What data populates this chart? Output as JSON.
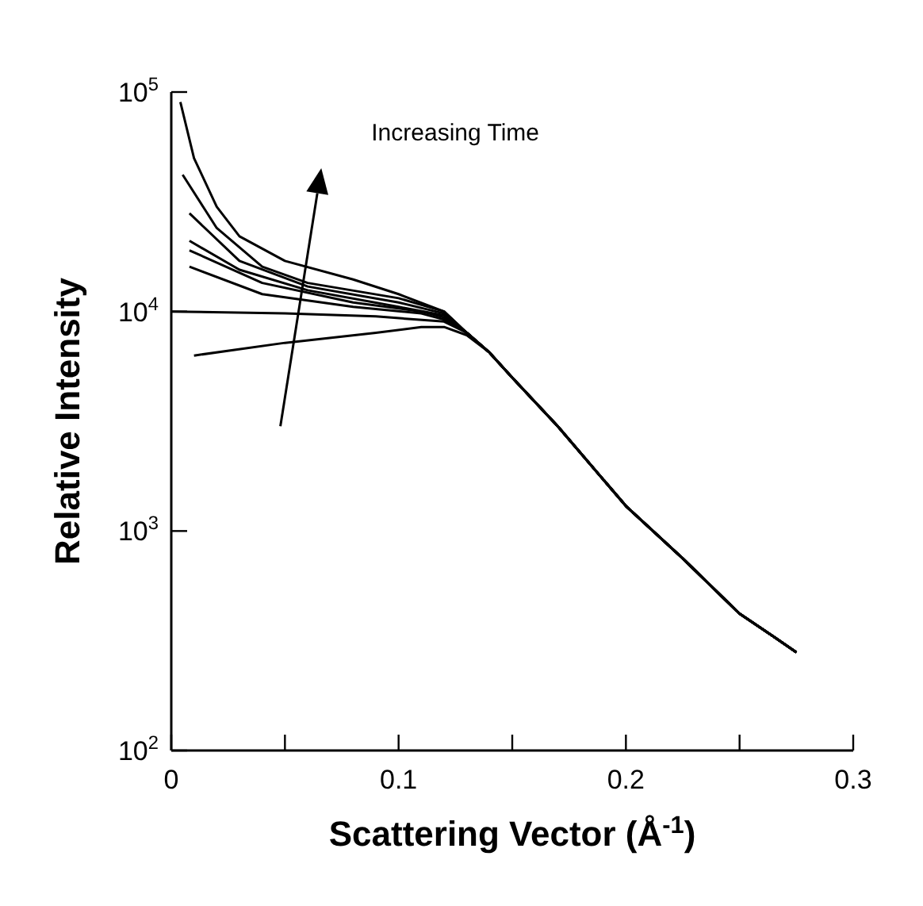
{
  "chart_data": {
    "type": "line",
    "xlabel": "Scattering Vector (Å$^{-1}$)",
    "ylabel": "Relative Intensity",
    "log": "y",
    "xlim": [
      0,
      0.3
    ],
    "ylim": [
      100,
      100000
    ],
    "xticks": [
      0,
      0.1,
      0.2,
      0.3,
      {
        "value": 0.05,
        "label": null
      },
      {
        "value": 0.15,
        "label": null
      },
      {
        "value": 0.25,
        "label": null
      }
    ],
    "yticks": [
      {
        "value": 100,
        "label": "10$^{2}$"
      },
      {
        "value": 1000,
        "label": "10$^{3}$"
      },
      {
        "value": 10000,
        "label": "10$^{4}$"
      },
      {
        "value": 100000,
        "label": "10$^{5}$"
      }
    ],
    "annotations": [
      "Increasing Time"
    ],
    "marker": "none",
    "line_style": "solid",
    "series": [
      {
        "color": "#000000",
        "x": [
          0.004,
          0.01,
          0.02,
          0.03,
          0.05,
          0.08,
          0.1,
          0.12,
          0.13,
          0.14,
          0.15,
          0.17,
          0.2,
          0.225,
          0.25,
          0.265,
          0.275
        ],
        "values": [
          90000,
          50000,
          30000,
          22000,
          17000,
          14000,
          12000,
          10000,
          8000,
          6500,
          5000,
          3000,
          1300,
          750,
          420,
          330,
          280
        ]
      },
      {
        "color": "#000000",
        "x": [
          0.005,
          0.02,
          0.04,
          0.06,
          0.1,
          0.12,
          0.13,
          0.14,
          0.15,
          0.17,
          0.2,
          0.225,
          0.25,
          0.265,
          0.275
        ],
        "values": [
          42000,
          24000,
          16000,
          13500,
          11500,
          10000,
          8000,
          6500,
          5000,
          3000,
          1300,
          750,
          420,
          330,
          280
        ]
      },
      {
        "color": "#000000",
        "x": [
          0.008,
          0.03,
          0.06,
          0.1,
          0.12,
          0.13,
          0.14,
          0.15,
          0.17,
          0.2,
          0.225,
          0.25,
          0.265,
          0.275
        ],
        "values": [
          28000,
          17000,
          13000,
          11000,
          9800,
          8000,
          6500,
          5000,
          3000,
          1300,
          750,
          420,
          330,
          280
        ]
      },
      {
        "color": "#000000",
        "x": [
          0.008,
          0.03,
          0.06,
          0.1,
          0.12,
          0.13,
          0.14,
          0.15,
          0.17,
          0.2,
          0.225,
          0.25,
          0.265,
          0.275
        ],
        "values": [
          21000,
          15500,
          12500,
          10500,
          9600,
          8000,
          6500,
          5000,
          3000,
          1300,
          750,
          420,
          330,
          280
        ]
      },
      {
        "color": "#000000",
        "x": [
          0.008,
          0.04,
          0.08,
          0.11,
          0.12,
          0.13,
          0.14,
          0.15,
          0.17,
          0.2,
          0.225,
          0.25,
          0.265,
          0.275
        ],
        "values": [
          19000,
          13500,
          11000,
          10000,
          9400,
          8000,
          6500,
          5000,
          3000,
          1300,
          750,
          420,
          330,
          280
        ]
      },
      {
        "color": "#000000",
        "x": [
          0.008,
          0.04,
          0.08,
          0.11,
          0.12,
          0.13,
          0.14,
          0.15,
          0.17,
          0.2,
          0.225,
          0.25,
          0.265,
          0.275
        ],
        "values": [
          16000,
          12000,
          10500,
          9800,
          9200,
          8000,
          6500,
          5000,
          3000,
          1300,
          750,
          420,
          330,
          280
        ]
      },
      {
        "color": "#000000",
        "x": [
          0.0,
          0.05,
          0.09,
          0.12,
          0.13,
          0.14,
          0.15,
          0.17,
          0.2,
          0.225,
          0.25,
          0.265,
          0.275
        ],
        "values": [
          10000,
          9800,
          9500,
          9000,
          8000,
          6500,
          5000,
          3000,
          1300,
          750,
          420,
          330,
          280
        ]
      },
      {
        "color": "#000000",
        "x": [
          0.01,
          0.05,
          0.09,
          0.11,
          0.12,
          0.13,
          0.14,
          0.15,
          0.17,
          0.2,
          0.225,
          0.25,
          0.265,
          0.275
        ],
        "values": [
          6300,
          7200,
          8000,
          8500,
          8500,
          7800,
          6500,
          5000,
          3000,
          1300,
          750,
          420,
          330,
          280
        ]
      }
    ]
  }
}
